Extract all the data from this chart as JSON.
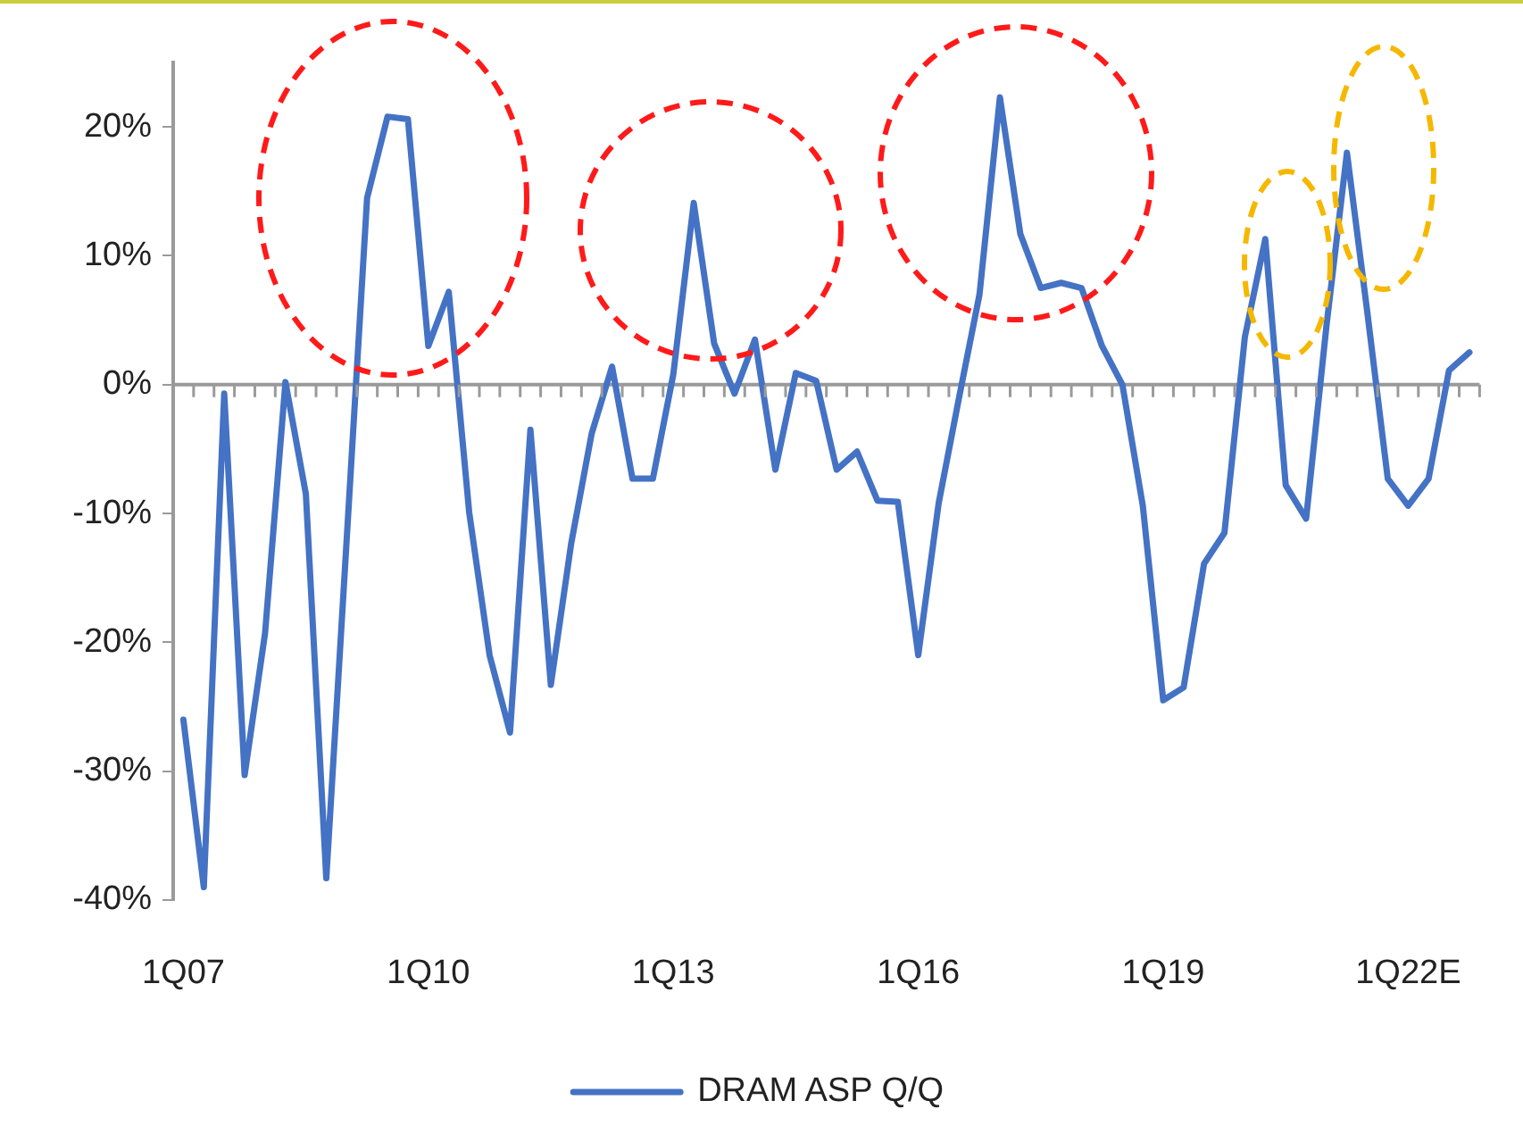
{
  "chart_data": {
    "type": "line",
    "categories": [
      "1Q07",
      null,
      null,
      null,
      null,
      null,
      null,
      null,
      null,
      null,
      null,
      null,
      "1Q10",
      null,
      null,
      null,
      null,
      null,
      null,
      null,
      null,
      null,
      null,
      null,
      "1Q13",
      null,
      null,
      null,
      null,
      null,
      null,
      null,
      null,
      null,
      null,
      null,
      "1Q16",
      null,
      null,
      null,
      null,
      null,
      null,
      null,
      null,
      null,
      null,
      null,
      "1Q19",
      null,
      null,
      null,
      null,
      null,
      null,
      null,
      null,
      null,
      null,
      null,
      "1Q22E",
      null,
      null,
      null
    ],
    "series": [
      {
        "name": "DRAM ASP Q/Q",
        "color": "#4472c4",
        "values": [
          -26,
          -39,
          -0.7,
          -30.3,
          -19.3,
          0.2,
          -8.5,
          -38.3,
          -12,
          14.5,
          20.8,
          20.6,
          3,
          7.2,
          -9.9,
          -21,
          -27,
          -3.5,
          -23.3,
          -12.3,
          -3.8,
          1.4,
          -7.3,
          -7.3,
          0.8,
          14.1,
          3.2,
          -0.7,
          3.5,
          -6.6,
          0.9,
          0.3,
          -6.6,
          -5.2,
          -9,
          -9.1,
          -21,
          -9.2,
          -1,
          7,
          22.3,
          11.7,
          7.5,
          7.9,
          7.5,
          3,
          0,
          -9.4,
          -24.5,
          -23.5,
          -13.9,
          -11.5,
          3.7,
          11.3,
          -7.8,
          -10.4,
          4.6,
          18,
          5.6,
          -7.3,
          -9.4,
          -7.3,
          1.1,
          2.5
        ]
      }
    ],
    "ylim": [
      -40,
      25
    ],
    "yticks": [
      {
        "value": -40,
        "label": "-40%"
      },
      {
        "value": -30,
        "label": "-30%"
      },
      {
        "value": -20,
        "label": "-20%"
      },
      {
        "value": -10,
        "label": "-10%"
      },
      {
        "value": 0,
        "label": "0%"
      },
      {
        "value": 10,
        "label": "10%"
      },
      {
        "value": 20,
        "label": "20%"
      }
    ],
    "ref_lines": [
      {
        "axis": "y",
        "value": 0,
        "color": "#9a9a9a"
      }
    ],
    "legend": "bottom",
    "grid": false,
    "marker": "none",
    "line_style": "solid"
  }
}
